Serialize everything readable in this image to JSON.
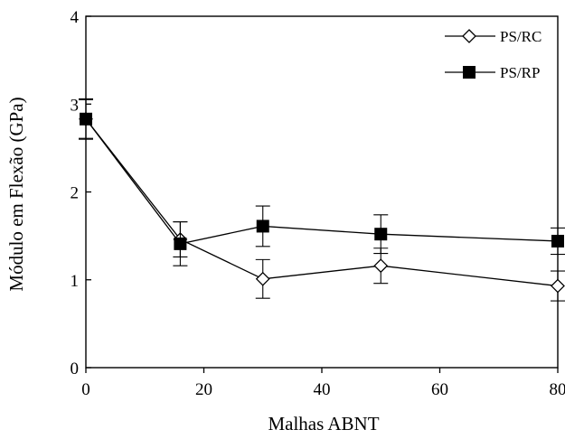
{
  "chart_data": {
    "type": "line",
    "title": "",
    "xlabel": "Malhas ABNT",
    "ylabel": "Módulo em Flexão (GPa)",
    "xlim": [
      0,
      80
    ],
    "ylim": [
      0,
      4
    ],
    "xticks": [
      0,
      20,
      40,
      60,
      80
    ],
    "yticks": [
      0,
      1,
      2,
      3,
      4
    ],
    "grid": false,
    "legend_position": "top-right",
    "series": [
      {
        "name": "PS/RC",
        "marker": "open-diamond",
        "color": "#000000",
        "x": [
          0,
          16,
          30,
          50,
          80
        ],
        "y": [
          2.83,
          1.46,
          1.01,
          1.16,
          0.93
        ],
        "error": [
          0.22,
          0.2,
          0.22,
          0.2,
          0.17
        ]
      },
      {
        "name": "PS/RP",
        "marker": "filled-square",
        "color": "#000000",
        "x": [
          0,
          16,
          30,
          50,
          80
        ],
        "y": [
          2.83,
          1.41,
          1.61,
          1.52,
          1.44
        ],
        "error": [
          0.23,
          0.25,
          0.23,
          0.22,
          0.15
        ]
      }
    ]
  }
}
